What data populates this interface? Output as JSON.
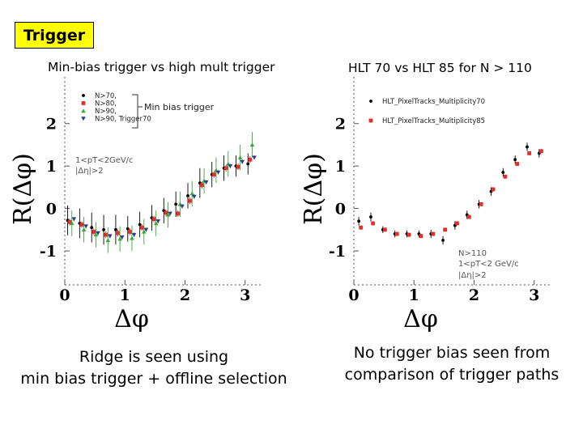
{
  "header": {
    "badge": "Trigger"
  },
  "colors": {
    "badge_bg": "#ffff00",
    "black": "#000000",
    "red": "#e0322d",
    "green": "#38a838",
    "blue": "#2c3f8c"
  },
  "chart_data": [
    {
      "type": "scatter",
      "title": "Min-bias trigger vs high mult trigger",
      "xlabel": "Δφ",
      "ylabel": "R(Δφ)",
      "xlim": [
        0,
        3.3
      ],
      "ylim": [
        -1.8,
        3.1
      ],
      "xticks": [
        "0",
        "1",
        "2",
        "3"
      ],
      "yticks": [
        "2",
        "1",
        "0",
        "-1"
      ],
      "legend": [
        "N>70,",
        "N>80,",
        "N>90,",
        "N>90, Trigger70"
      ],
      "annotations": [
        "Min bias trigger",
        "1<pT<2GeV/c",
        "|Δη|>2"
      ],
      "x": [
        0.1,
        0.3,
        0.5,
        0.7,
        0.9,
        1.1,
        1.3,
        1.5,
        1.7,
        1.9,
        2.1,
        2.3,
        2.5,
        2.7,
        2.9,
        3.1
      ],
      "series": [
        {
          "name": "N>70,",
          "color": "#000000",
          "marker": "circle",
          "values": [
            -0.28,
            -0.35,
            -0.45,
            -0.5,
            -0.5,
            -0.48,
            -0.38,
            -0.22,
            -0.05,
            0.1,
            0.3,
            0.6,
            0.8,
            0.95,
            1.0,
            1.05
          ],
          "errors": [
            0.35,
            0.35,
            0.35,
            0.35,
            0.35,
            0.3,
            0.3,
            0.3,
            0.3,
            0.3,
            0.3,
            0.35,
            0.3,
            0.3,
            0.25,
            0.25
          ]
        },
        {
          "name": "N>80,",
          "color": "#e0322d",
          "marker": "square",
          "values": [
            -0.32,
            -0.38,
            -0.55,
            -0.62,
            -0.58,
            -0.55,
            -0.45,
            -0.25,
            -0.1,
            -0.12,
            0.18,
            0.55,
            0.8,
            0.95,
            0.98,
            1.15
          ],
          "errors": [
            0.08,
            0.08,
            0.08,
            0.08,
            0.08,
            0.08,
            0.08,
            0.08,
            0.08,
            0.08,
            0.08,
            0.08,
            0.08,
            0.08,
            0.08,
            0.08
          ]
        },
        {
          "name": "N>90,",
          "color": "#38a838",
          "marker": "triangle-up",
          "values": [
            -0.35,
            -0.5,
            -0.62,
            -0.75,
            -0.72,
            -0.7,
            -0.55,
            -0.35,
            -0.15,
            0.1,
            0.35,
            0.65,
            0.9,
            1.05,
            1.2,
            1.5
          ],
          "errors": [
            0.3,
            0.3,
            0.3,
            0.3,
            0.3,
            0.3,
            0.3,
            0.3,
            0.3,
            0.3,
            0.3,
            0.3,
            0.3,
            0.3,
            0.3,
            0.3
          ]
        },
        {
          "name": "N>90, Trigger70",
          "color": "#2c3f8c",
          "marker": "triangle-down",
          "values": [
            -0.25,
            -0.42,
            -0.58,
            -0.65,
            -0.68,
            -0.62,
            -0.5,
            -0.3,
            -0.12,
            0.05,
            0.28,
            0.62,
            0.85,
            1.0,
            1.1,
            1.2
          ],
          "errors": [
            0.05,
            0.05,
            0.05,
            0.05,
            0.05,
            0.05,
            0.05,
            0.05,
            0.05,
            0.05,
            0.05,
            0.05,
            0.05,
            0.05,
            0.05,
            0.05
          ]
        }
      ]
    },
    {
      "type": "scatter",
      "title": "HLT 70 vs HLT 85 for N > 110",
      "xlabel": "Δφ",
      "ylabel": "R(Δφ)",
      "xlim": [
        0,
        3.3
      ],
      "ylim": [
        -1.8,
        3.1
      ],
      "xticks": [
        "0",
        "1",
        "2",
        "3"
      ],
      "yticks": [
        "2",
        "1",
        "0",
        "-1"
      ],
      "legend": [
        "HLT_PixelTracks_Multiplicity70",
        "HLT_PixelTracks_Multiplicity85"
      ],
      "annotations": [
        "N>110",
        "1<pT<2 GeV/c",
        "|Δη|>2"
      ],
      "x": [
        0.1,
        0.3,
        0.5,
        0.7,
        0.9,
        1.1,
        1.3,
        1.5,
        1.7,
        1.9,
        2.1,
        2.3,
        2.5,
        2.7,
        2.9,
        3.1
      ],
      "series": [
        {
          "name": "HLT_PixelTracks_Multiplicity70",
          "color": "#000000",
          "marker": "circle",
          "values": [
            -0.3,
            -0.2,
            -0.5,
            -0.6,
            -0.6,
            -0.6,
            -0.6,
            -0.75,
            -0.4,
            -0.15,
            0.1,
            0.4,
            0.85,
            1.15,
            1.45,
            1.3
          ],
          "errors": [
            0.1,
            0.1,
            0.08,
            0.08,
            0.08,
            0.08,
            0.1,
            0.1,
            0.1,
            0.1,
            0.1,
            0.1,
            0.1,
            0.1,
            0.1,
            0.1
          ]
        },
        {
          "name": "HLT_PixelTracks_Multiplicity85",
          "color": "#e0322d",
          "marker": "square",
          "values": [
            -0.45,
            -0.35,
            -0.5,
            -0.6,
            -0.62,
            -0.65,
            -0.6,
            -0.5,
            -0.35,
            -0.2,
            0.1,
            0.45,
            0.75,
            1.05,
            1.3,
            1.35
          ],
          "errors": [
            0.05,
            0.05,
            0.05,
            0.05,
            0.05,
            0.05,
            0.05,
            0.05,
            0.05,
            0.05,
            0.05,
            0.05,
            0.05,
            0.05,
            0.05,
            0.05
          ]
        }
      ]
    }
  ],
  "captions": {
    "left": [
      "Ridge is seen using",
      "min bias trigger + offline selection"
    ],
    "right": [
      "No trigger bias seen from",
      "comparison of trigger paths"
    ]
  }
}
